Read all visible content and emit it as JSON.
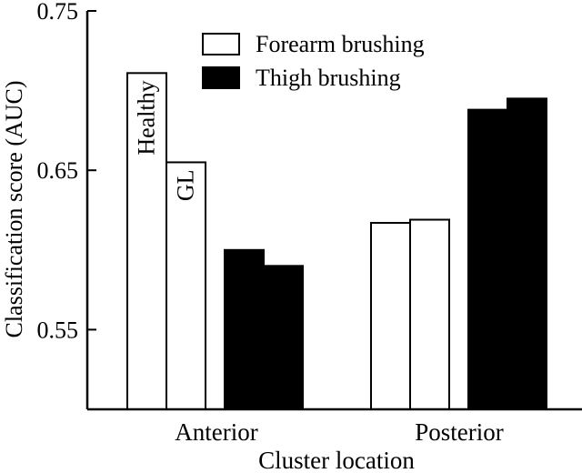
{
  "chart_data": {
    "type": "bar",
    "title": "",
    "xlabel": "Cluster location",
    "ylabel": "Classification score (AUC)",
    "ylim": [
      0.5,
      0.75
    ],
    "yticks": [
      0.55,
      0.65,
      0.75
    ],
    "ytick_labels": [
      "0.55",
      "0.65",
      "0.75"
    ],
    "categories": [
      "Anterior",
      "Posterior"
    ],
    "legend": {
      "placement": "top-right",
      "entries": [
        {
          "label": "Forearm brushing",
          "color": "#ffffff"
        },
        {
          "label": "Thigh brushing",
          "color": "#000000"
        }
      ]
    },
    "bars": [
      {
        "category": "Anterior",
        "brushing": "Forearm brushing",
        "group": "Healthy",
        "value": 0.711,
        "color": "#ffffff",
        "label": "Healthy"
      },
      {
        "category": "Anterior",
        "brushing": "Forearm brushing",
        "group": "GL",
        "value": 0.655,
        "color": "#ffffff",
        "label": "GL"
      },
      {
        "category": "Anterior",
        "brushing": "Thigh brushing",
        "group": "Healthy",
        "value": 0.6,
        "color": "#000000"
      },
      {
        "category": "Anterior",
        "brushing": "Thigh brushing",
        "group": "GL",
        "value": 0.59,
        "color": "#000000"
      },
      {
        "category": "Posterior",
        "brushing": "Forearm brushing",
        "group": "Healthy",
        "value": 0.617,
        "color": "#ffffff"
      },
      {
        "category": "Posterior",
        "brushing": "Forearm brushing",
        "group": "GL",
        "value": 0.619,
        "color": "#ffffff"
      },
      {
        "category": "Posterior",
        "brushing": "Thigh brushing",
        "group": "Healthy",
        "value": 0.688,
        "color": "#000000"
      },
      {
        "category": "Posterior",
        "brushing": "Thigh brushing",
        "group": "GL",
        "value": 0.695,
        "color": "#000000"
      }
    ],
    "grid": false
  }
}
